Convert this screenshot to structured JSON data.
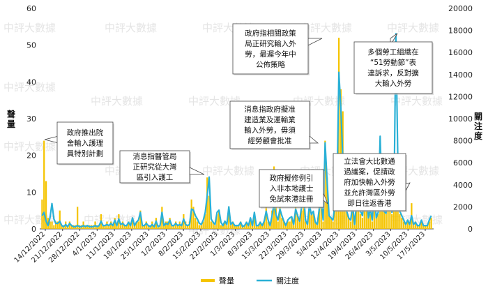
{
  "chart_data": {
    "type": "bar+line",
    "y_left": {
      "label": "聲量",
      "min": 0,
      "max": 60,
      "ticks": [
        0,
        10,
        20,
        30,
        40,
        50,
        60
      ]
    },
    "y_right": {
      "label": "關注度",
      "min": 0,
      "max": 20000,
      "ticks": [
        0,
        2000,
        4000,
        6000,
        8000,
        10000,
        12000,
        14000,
        16000,
        18000,
        20000
      ]
    },
    "x_tick_labels": [
      "14/12/2022",
      "21/12/2022",
      "28/12/2022",
      "4/1/2023",
      "11/1/2023",
      "18/1/2023",
      "25/1/2023",
      "1/2/2023",
      "8/2/2023",
      "15/2/2023",
      "22/2/2023",
      "1/3/2023",
      "8/3/2023",
      "15/3/2023",
      "22/3/2023",
      "29/3/2023",
      "5/4/2023",
      "12/4/2023",
      "19/4/2023",
      "26/4/2023",
      "3/5/2023",
      "10/5/2023",
      "17/5/2023"
    ],
    "series": [
      {
        "name": "聲量",
        "kind": "bar",
        "color": "#f5c400",
        "values": [
          8,
          24,
          13,
          3,
          2,
          2,
          1,
          2,
          2,
          5,
          1,
          1,
          2,
          1,
          2,
          1,
          1,
          1,
          6,
          1,
          1,
          2,
          1,
          1,
          1,
          1,
          1,
          2,
          1,
          1,
          4,
          1,
          1,
          2,
          1,
          2,
          1,
          3,
          1,
          4,
          1,
          2,
          1,
          1,
          2,
          1,
          3,
          1,
          2,
          2,
          5,
          1,
          1,
          2,
          1,
          1,
          2,
          1,
          3,
          1,
          1,
          6,
          1,
          2,
          2,
          3,
          1,
          1,
          2,
          1,
          2,
          1,
          4,
          2,
          1,
          2,
          8,
          6,
          3,
          2,
          1,
          1,
          2,
          4,
          14,
          9,
          2,
          2,
          1,
          4,
          5,
          1,
          1,
          2,
          1,
          6,
          1,
          2,
          1,
          1,
          1,
          2,
          1,
          1,
          2,
          1,
          3,
          1,
          4,
          1,
          1,
          2,
          1,
          2,
          6,
          2,
          1,
          5,
          17,
          7,
          2,
          6,
          3,
          2,
          1,
          2,
          2,
          3,
          1,
          6,
          4,
          2,
          5,
          10,
          2,
          1,
          6,
          4,
          4,
          2,
          1,
          6,
          9,
          2,
          24,
          14,
          4,
          3,
          2,
          5,
          5,
          52,
          38,
          32,
          14,
          6,
          3,
          2,
          8,
          1,
          6,
          7,
          4,
          3,
          9,
          10,
          3,
          4,
          2,
          12,
          3,
          4,
          24,
          8,
          5,
          4,
          19,
          10,
          4,
          8,
          6,
          5,
          4,
          3,
          2,
          1,
          2,
          1,
          7,
          1,
          2,
          1,
          1,
          2,
          1,
          1,
          1,
          2,
          3
        ]
      },
      {
        "name": "關注度",
        "kind": "line",
        "color": "#2ab0d6",
        "values": [
          1200,
          1500,
          700,
          300,
          1000,
          2300,
          900,
          500,
          500,
          700,
          300,
          200,
          400,
          200,
          500,
          300,
          200,
          200,
          300,
          200,
          200,
          300,
          200,
          300,
          200,
          200,
          200,
          300,
          200,
          300,
          700,
          300,
          300,
          400,
          300,
          500,
          300,
          800,
          300,
          900,
          400,
          500,
          300,
          300,
          600,
          300,
          1000,
          300,
          600,
          800,
          1500,
          300,
          300,
          500,
          300,
          200,
          400,
          200,
          700,
          200,
          300,
          1500,
          300,
          500,
          400,
          800,
          300,
          300,
          500,
          300,
          400,
          300,
          900,
          400,
          300,
          400,
          1800,
          1700,
          1200,
          900,
          500,
          400,
          800,
          1500,
          3000,
          4700,
          900,
          600,
          400,
          1500,
          1700,
          600,
          300,
          700,
          400,
          2000,
          400,
          600,
          300,
          300,
          300,
          600,
          200,
          300,
          600,
          300,
          1000,
          300,
          1500,
          300,
          300,
          600,
          300,
          700,
          1600,
          800,
          300,
          1200,
          2300,
          1300,
          800,
          1800,
          1200,
          700,
          300,
          800,
          1000,
          1100,
          400,
          1800,
          1200,
          700,
          2000,
          3500,
          800,
          400,
          2200,
          1300,
          1600,
          600,
          400,
          1800,
          2500,
          800,
          7800,
          4400,
          1200,
          1000,
          800,
          2200,
          3000,
          14200,
          11000,
          6400,
          3600,
          1600,
          1000,
          800,
          2200,
          400,
          2400,
          2800,
          1600,
          1200,
          3200,
          3500,
          1000,
          1800,
          800,
          3800,
          1000,
          1500,
          8400,
          2400,
          1600,
          1400,
          5400,
          2800,
          1500,
          2000,
          17700,
          6200,
          1600,
          1200,
          800,
          400,
          800,
          400,
          1200,
          400,
          600,
          300,
          300,
          800,
          300,
          300,
          300,
          800,
          1200
        ]
      }
    ],
    "legend": {
      "position": "bottom-center",
      "items": [
        "聲量",
        "關注度"
      ]
    },
    "annotations": [
      {
        "text": "政府推出院舍輸入護理員特別計劃"
      },
      {
        "text": "消息指醫管局正研究從大灣區引入護工"
      },
      {
        "text": "政府指相關政策局正研究輸入外勞，最遲今年中公佈策略"
      },
      {
        "text": "消息指政府擬准建造業及運輸業輸入外勞，毋須經勞顧會批准"
      },
      {
        "text": "政府擬修例引入非本地護士免試來港註冊"
      },
      {
        "text": "立法會大比數通過議案，促請政府加快輸入外勞並允許灣區外勞即日往返香港"
      },
      {
        "text": "多個勞工組織在“51勞動節”表達訴求，反對擴大輸入外勞"
      }
    ],
    "watermark": "中評大數據",
    "grid": false
  },
  "annotation_lines": [
    [
      "政府推出院",
      "舍輸入護理",
      "員特別計劃"
    ],
    [
      "消息指醫管局",
      "正研究從大灣",
      "區引入護工"
    ],
    [
      "政府指相關政策",
      "局正研究輸入外",
      "勞，最遲今年中",
      "公佈策略"
    ],
    [
      "消息指政府擬准",
      "建造業及運輸業",
      "輸入外勞，毋須",
      "經勞顧會批准"
    ],
    [
      "政府擬修例引",
      "入非本地護士",
      "免試來港註冊"
    ],
    [
      "立法會大比數通",
      "過議案，促請政",
      "府加快輸入外勞",
      "並允許灣區外勞",
      "即日往返香港"
    ],
    [
      "多個勞工組織在",
      "“51勞動節”表",
      "達訴求，反對擴",
      "大輸入外勞"
    ]
  ]
}
